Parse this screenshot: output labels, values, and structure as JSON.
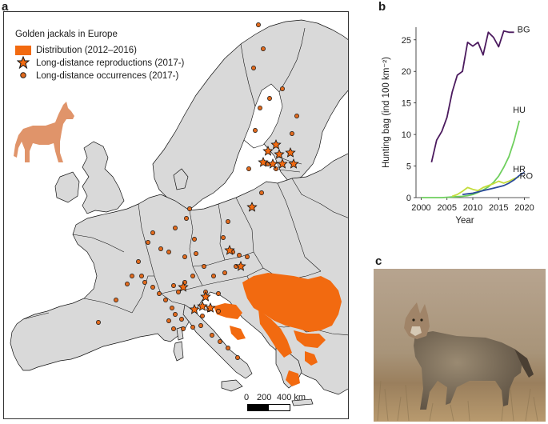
{
  "panels": {
    "a": "a",
    "b": "b",
    "c": "c"
  },
  "map": {
    "legend": {
      "title": "Golden jackals in Europe",
      "items": [
        {
          "label": "Distribution (2012–2016)",
          "symbol": "orange-rectangle",
          "color": "#f26a10"
        },
        {
          "label": "Long-distance reproductions (2017-)",
          "symbol": "star",
          "color": "#f26a10"
        },
        {
          "label": "Long-distance occurrences (2017-)",
          "symbol": "dot",
          "color": "#e06a1e"
        }
      ]
    },
    "colors": {
      "land": "#d9d9d9",
      "sea": "#ffffff",
      "border": "#111111",
      "distribution": "#f26a10"
    },
    "jackal_silhouette": {
      "color": "#e0946a",
      "icon": "jackal-silhouette-icon"
    },
    "scalebar": {
      "ticks": [
        "0",
        "200",
        "400 km"
      ]
    }
  },
  "chart_data": {
    "type": "line",
    "title": "",
    "xlabel": "Year",
    "ylabel": "Hunting bag (ind 100 km⁻²)",
    "xlim": [
      1999,
      2021
    ],
    "ylim": [
      0,
      27
    ],
    "xticks": [
      2000,
      2005,
      2010,
      2015,
      2020
    ],
    "yticks": [
      0,
      5,
      10,
      15,
      20,
      25
    ],
    "grid": false,
    "series": [
      {
        "name": "BG",
        "color": "#4b1a5e",
        "x": [
          2002,
          2003,
          2004,
          2005,
          2006,
          2007,
          2008,
          2009,
          2010,
          2011,
          2012,
          2013,
          2014,
          2015,
          2016,
          2017,
          2018
        ],
        "y": [
          5.6,
          9.1,
          10.5,
          12.7,
          16.7,
          19.4,
          20.0,
          24.6,
          24.0,
          24.6,
          22.6,
          26.2,
          25.4,
          23.9,
          26.4,
          26.2,
          26.2
        ]
      },
      {
        "name": "HU",
        "color": "#6fcf5e",
        "x": [
          2000,
          2001,
          2002,
          2003,
          2004,
          2005,
          2006,
          2007,
          2008,
          2009,
          2010,
          2011,
          2012,
          2013,
          2014,
          2015,
          2016,
          2017,
          2018,
          2019
        ],
        "y": [
          0,
          0,
          0,
          0,
          0,
          0.05,
          0.1,
          0.15,
          0.2,
          0.3,
          0.5,
          0.8,
          1.2,
          1.7,
          2.4,
          3.4,
          4.8,
          6.5,
          9.0,
          12.2
        ]
      },
      {
        "name": "HR",
        "color": "#c4dd3c",
        "x": [
          2006,
          2007,
          2008,
          2009,
          2010,
          2011,
          2012,
          2013,
          2014,
          2015,
          2016,
          2017,
          2018,
          2019
        ],
        "y": [
          0.2,
          0.5,
          1.0,
          1.6,
          1.3,
          1.1,
          1.6,
          1.9,
          2.2,
          2.6,
          2.3,
          2.6,
          3.0,
          3.3
        ]
      },
      {
        "name": "RO",
        "color": "#2b4a9a",
        "x": [
          2008,
          2009,
          2010,
          2011,
          2012,
          2013,
          2014,
          2015,
          2016,
          2017,
          2018,
          2019,
          2020
        ],
        "y": [
          0.5,
          0.6,
          0.7,
          0.9,
          1.1,
          1.3,
          1.5,
          1.7,
          1.9,
          2.3,
          2.8,
          3.5,
          4.0
        ]
      }
    ]
  },
  "photo": {
    "subject": "golden jackal standing on dry grass",
    "icon": "golden-jackal-photo"
  }
}
